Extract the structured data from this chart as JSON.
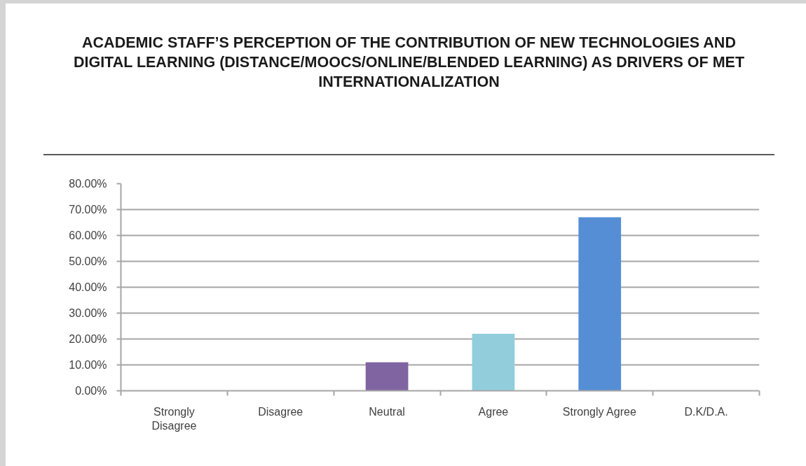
{
  "chart_data": {
    "type": "bar",
    "title": "ACADEMIC STAFF’S PERCEPTION OF THE CONTRIBUTION OF NEW TECHNOLOGIES AND DIGITAL LEARNING (DISTANCE/MOOCS/ONLINE/BLENDED LEARNING) AS DRIVERS OF MET INTERNATIONALIZATION",
    "categories": [
      "Strongly Disagree",
      "Disagree",
      "Neutral",
      "Agree",
      "Strongly Agree",
      "D.K/D.A."
    ],
    "values": [
      0,
      0,
      11,
      22,
      67,
      0
    ],
    "colors": [
      "#4f81bd",
      "#c0504d",
      "#8064a2",
      "#92cddc",
      "#558ed5",
      "#f79646"
    ],
    "ylim": [
      0,
      80
    ],
    "yticks": [
      {
        "value": 0,
        "label": "0.00%"
      },
      {
        "value": 10,
        "label": "10.00%"
      },
      {
        "value": 20,
        "label": "20.00%"
      },
      {
        "value": 30,
        "label": "30.00%"
      },
      {
        "value": 40,
        "label": "40.00%"
      },
      {
        "value": 50,
        "label": "50.00%"
      },
      {
        "value": 60,
        "label": "60.00%"
      },
      {
        "value": 70,
        "label": "70.00%"
      },
      {
        "value": 80,
        "label": "80.00%"
      }
    ],
    "grid": "y"
  }
}
